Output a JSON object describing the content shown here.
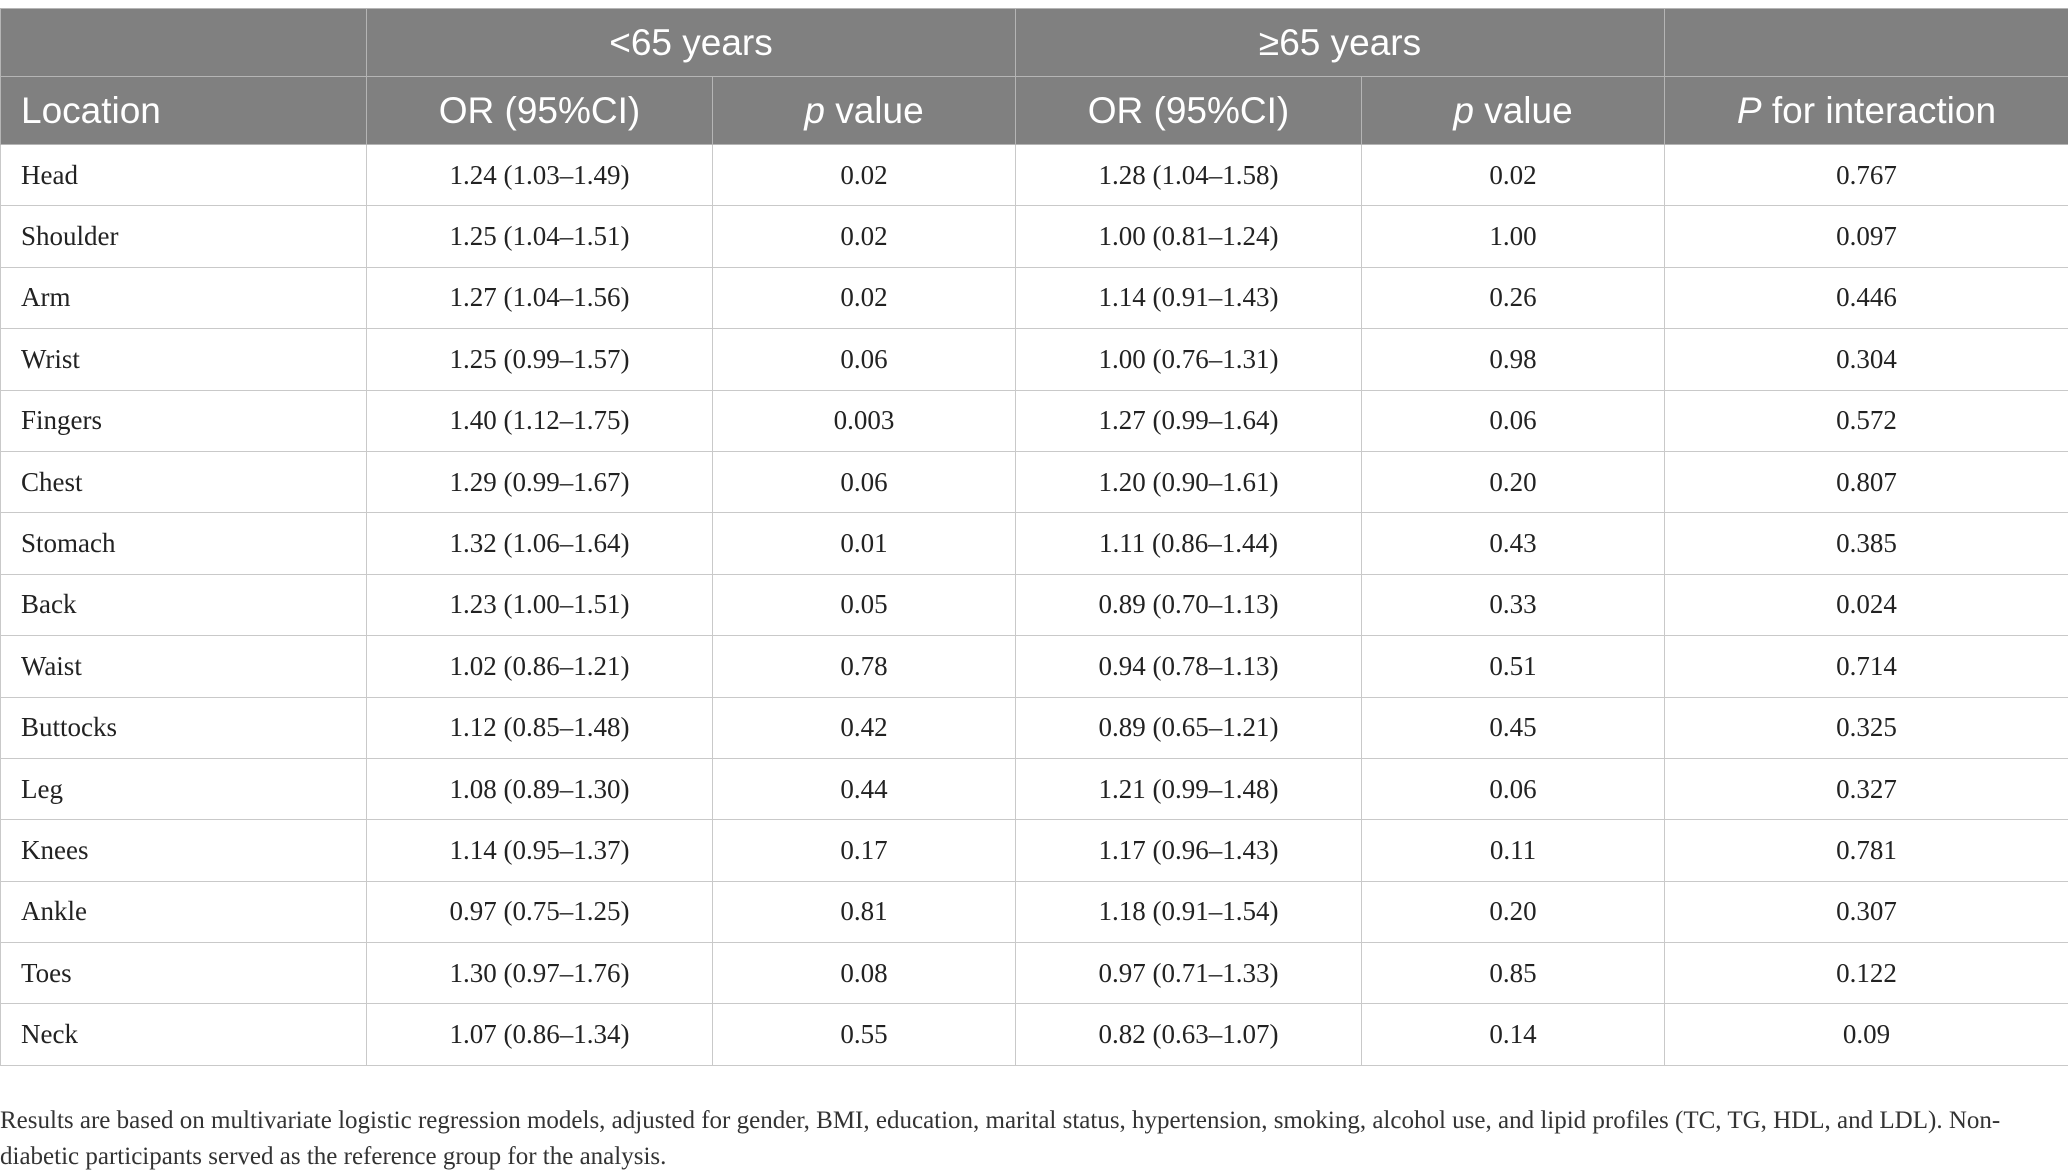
{
  "header": {
    "group_lt65": "<65 years",
    "group_ge65": "≥65 years",
    "col_location": "Location",
    "col_or1": "OR (95%CI)",
    "col_p1_italic": "p",
    "col_p1_rest": " value",
    "col_or2": "OR (95%CI)",
    "col_p2_italic": "p",
    "col_p2_rest": " value",
    "col_interaction_italic": "P",
    "col_interaction_rest": " for interaction"
  },
  "rows": [
    {
      "location": "Head",
      "or_lt65": "1.24 (1.03–1.49)",
      "p_lt65": "0.02",
      "or_ge65": "1.28 (1.04–1.58)",
      "p_ge65": "0.02",
      "p_interaction": "0.767"
    },
    {
      "location": "Shoulder",
      "or_lt65": "1.25 (1.04–1.51)",
      "p_lt65": "0.02",
      "or_ge65": "1.00 (0.81–1.24)",
      "p_ge65": "1.00",
      "p_interaction": "0.097"
    },
    {
      "location": "Arm",
      "or_lt65": "1.27 (1.04–1.56)",
      "p_lt65": "0.02",
      "or_ge65": "1.14 (0.91–1.43)",
      "p_ge65": "0.26",
      "p_interaction": "0.446"
    },
    {
      "location": "Wrist",
      "or_lt65": "1.25 (0.99–1.57)",
      "p_lt65": "0.06",
      "or_ge65": "1.00 (0.76–1.31)",
      "p_ge65": "0.98",
      "p_interaction": "0.304"
    },
    {
      "location": "Fingers",
      "or_lt65": "1.40 (1.12–1.75)",
      "p_lt65": "0.003",
      "or_ge65": "1.27 (0.99–1.64)",
      "p_ge65": "0.06",
      "p_interaction": "0.572"
    },
    {
      "location": "Chest",
      "or_lt65": "1.29 (0.99–1.67)",
      "p_lt65": "0.06",
      "or_ge65": "1.20 (0.90–1.61)",
      "p_ge65": "0.20",
      "p_interaction": "0.807"
    },
    {
      "location": "Stomach",
      "or_lt65": "1.32 (1.06–1.64)",
      "p_lt65": "0.01",
      "or_ge65": "1.11 (0.86–1.44)",
      "p_ge65": "0.43",
      "p_interaction": "0.385"
    },
    {
      "location": "Back",
      "or_lt65": "1.23 (1.00–1.51)",
      "p_lt65": "0.05",
      "or_ge65": "0.89 (0.70–1.13)",
      "p_ge65": "0.33",
      "p_interaction": "0.024"
    },
    {
      "location": "Waist",
      "or_lt65": "1.02 (0.86–1.21)",
      "p_lt65": "0.78",
      "or_ge65": "0.94 (0.78–1.13)",
      "p_ge65": "0.51",
      "p_interaction": "0.714"
    },
    {
      "location": "Buttocks",
      "or_lt65": "1.12 (0.85–1.48)",
      "p_lt65": "0.42",
      "or_ge65": "0.89 (0.65–1.21)",
      "p_ge65": "0.45",
      "p_interaction": "0.325"
    },
    {
      "location": "Leg",
      "or_lt65": "1.08 (0.89–1.30)",
      "p_lt65": "0.44",
      "or_ge65": "1.21 (0.99–1.48)",
      "p_ge65": "0.06",
      "p_interaction": "0.327"
    },
    {
      "location": "Knees",
      "or_lt65": "1.14 (0.95–1.37)",
      "p_lt65": "0.17",
      "or_ge65": "1.17 (0.96–1.43)",
      "p_ge65": "0.11",
      "p_interaction": "0.781"
    },
    {
      "location": "Ankle",
      "or_lt65": "0.97 (0.75–1.25)",
      "p_lt65": "0.81",
      "or_ge65": "1.18 (0.91–1.54)",
      "p_ge65": "0.20",
      "p_interaction": "0.307"
    },
    {
      "location": "Toes",
      "or_lt65": "1.30 (0.97–1.76)",
      "p_lt65": "0.08",
      "or_ge65": "0.97 (0.71–1.33)",
      "p_ge65": "0.85",
      "p_interaction": "0.122"
    },
    {
      "location": "Neck",
      "or_lt65": "1.07 (0.86–1.34)",
      "p_lt65": "0.55",
      "or_ge65": "0.82 (0.63–1.07)",
      "p_ge65": "0.14",
      "p_interaction": "0.09"
    }
  ],
  "footnote": "Results are based on multivariate logistic regression models, adjusted for gender, BMI, education, marital status, hypertension, smoking, alcohol use, and lipid profiles (TC, TG, HDL, and LDL). Non-diabetic participants served as the reference group for the analysis.",
  "colors": {
    "header_bg": "#808080",
    "header_text": "#ffffff",
    "grid_line": "#c9c9c9"
  }
}
